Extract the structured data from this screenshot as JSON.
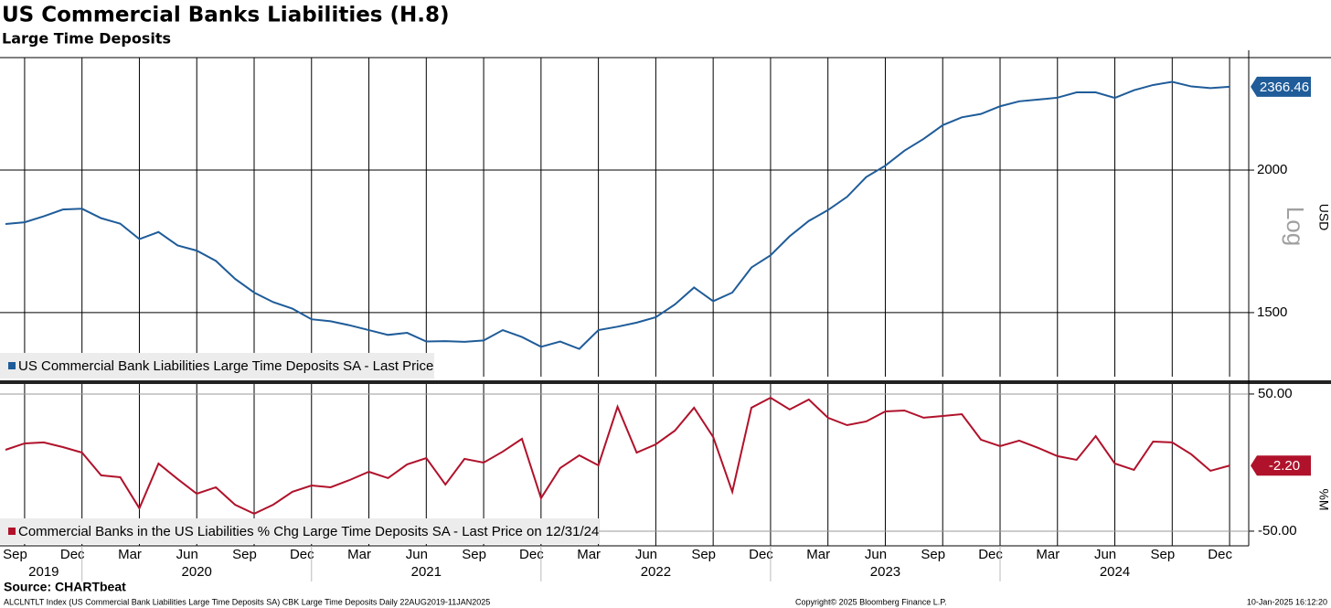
{
  "chart_data": [
    {
      "type": "line",
      "title": "US Commercial Banks Liabilities (H.8)",
      "subtitle": "Large Time Deposits",
      "log_scale": true,
      "y_label": "USD",
      "scale_label": "Log",
      "grid": true,
      "x": [
        "2019-09",
        "2019-10",
        "2019-11",
        "2019-12",
        "2020-01",
        "2020-02",
        "2020-03",
        "2020-04",
        "2020-05",
        "2020-06",
        "2020-07",
        "2020-08",
        "2020-09",
        "2020-10",
        "2020-11",
        "2020-12",
        "2021-01",
        "2021-02",
        "2021-03",
        "2021-04",
        "2021-05",
        "2021-06",
        "2021-07",
        "2021-08",
        "2021-09",
        "2021-10",
        "2021-11",
        "2021-12",
        "2022-01",
        "2022-02",
        "2022-03",
        "2022-04",
        "2022-05",
        "2022-06",
        "2022-07",
        "2022-08",
        "2022-09",
        "2022-10",
        "2022-11",
        "2022-12",
        "2023-01",
        "2023-02",
        "2023-03",
        "2023-04",
        "2023-05",
        "2023-06",
        "2023-07",
        "2023-08",
        "2023-09",
        "2023-10",
        "2023-11",
        "2023-12",
        "2024-01",
        "2024-02",
        "2024-03",
        "2024-04",
        "2024-05",
        "2024-06",
        "2024-07",
        "2024-08",
        "2024-09",
        "2024-10",
        "2024-11",
        "2024-12",
        "2025-01"
      ],
      "series": [
        {
          "name": "US Commercial Bank Liabilities Large Time Deposits SA - Last Price",
          "color": "#1f5c99",
          "values": [
            1794,
            1800,
            1822,
            1847,
            1850,
            1815,
            1795,
            1740,
            1765,
            1718,
            1700,
            1665,
            1606,
            1562,
            1532,
            1512,
            1480,
            1474,
            1462,
            1448,
            1434,
            1440,
            1415,
            1416,
            1414,
            1418,
            1448,
            1428,
            1400,
            1415,
            1394,
            1448,
            1458,
            1470,
            1486,
            1525,
            1578,
            1535,
            1562,
            1643,
            1684,
            1750,
            1805,
            1845,
            1895,
            1972,
            2018,
            2080,
            2130,
            2190,
            2225,
            2240,
            2275,
            2298,
            2306,
            2315,
            2340,
            2340,
            2314,
            2350,
            2375,
            2390,
            2368,
            2360,
            2366.46
          ]
        }
      ],
      "xlim": [
        "2019-09",
        "2025-02"
      ],
      "ylim": [
        1318,
        2510
      ],
      "yticks": [
        1500,
        2000
      ]
    },
    {
      "type": "line",
      "y_label": "%M",
      "grid": true,
      "x": [
        "2019-09",
        "2019-10",
        "2019-11",
        "2019-12",
        "2020-01",
        "2020-02",
        "2020-03",
        "2020-04",
        "2020-05",
        "2020-06",
        "2020-07",
        "2020-08",
        "2020-09",
        "2020-10",
        "2020-11",
        "2020-12",
        "2021-01",
        "2021-02",
        "2021-03",
        "2021-04",
        "2021-05",
        "2021-06",
        "2021-07",
        "2021-08",
        "2021-09",
        "2021-10",
        "2021-11",
        "2021-12",
        "2022-01",
        "2022-02",
        "2022-03",
        "2022-04",
        "2022-05",
        "2022-06",
        "2022-07",
        "2022-08",
        "2022-09",
        "2022-10",
        "2022-11",
        "2022-12",
        "2023-01",
        "2023-02",
        "2023-03",
        "2023-04",
        "2023-05",
        "2023-06",
        "2023-07",
        "2023-08",
        "2023-09",
        "2023-10",
        "2023-11",
        "2023-12",
        "2024-01",
        "2024-02",
        "2024-03",
        "2024-04",
        "2024-05",
        "2024-06",
        "2024-07",
        "2024-08",
        "2024-09",
        "2024-10",
        "2024-11",
        "2024-12",
        "2025-01"
      ],
      "series": [
        {
          "name": "Commercial Banks in the US Liabilities % Chg Large Time Deposits SA - Last Price on 12/31/24",
          "color": "#b0122b",
          "values": [
            9.3,
            14,
            14.7,
            11.3,
            7.3,
            -9.3,
            -10.7,
            -33.3,
            -0.7,
            -12,
            -22.7,
            -18,
            -30.7,
            -37.3,
            -30.7,
            -21.3,
            -16.7,
            -18,
            -12.7,
            -6.7,
            -11.3,
            -1.3,
            3.3,
            -16,
            2.7,
            0,
            8,
            17.3,
            -26,
            -4,
            5.3,
            -2,
            40.7,
            7.3,
            13.3,
            23.3,
            40,
            18.7,
            -21.3,
            40,
            47.3,
            38.7,
            46,
            32.7,
            27.3,
            30,
            37.3,
            38,
            32.7,
            34,
            35.3,
            16.7,
            12,
            16,
            10.7,
            4.7,
            2,
            19.3,
            -0.7,
            -5.3,
            15.3,
            14.7,
            6,
            -6,
            -2.2
          ],
          "value_labels": [
            null,
            null,
            null,
            null,
            null,
            null,
            null,
            null,
            null,
            null,
            null,
            null,
            null,
            null,
            null,
            null,
            null,
            null,
            null,
            null,
            null,
            null,
            null,
            null,
            null,
            null,
            null,
            null,
            null,
            null,
            null,
            null,
            null,
            null,
            null,
            null,
            null,
            null,
            null,
            null,
            null,
            null,
            null,
            null,
            null,
            null,
            null,
            null,
            null,
            null,
            null,
            null,
            null,
            null,
            null,
            null,
            null,
            null,
            null,
            null,
            null,
            null,
            null,
            null,
            "-2.20"
          ]
        }
      ],
      "xlim": [
        "2019-09",
        "2025-02"
      ],
      "ylim": [
        -60.7,
        57.3
      ],
      "yticks": [
        {
          "value": 50,
          "label": "50.00"
        },
        {
          "value": -50,
          "label": "-50.00"
        }
      ],
      "xticks": [
        {
          "value": "2019-09",
          "label": "Sep"
        },
        {
          "value": "2019-12",
          "label": "Dec"
        },
        {
          "value": "2020-03",
          "label": "Mar"
        },
        {
          "value": "2020-06",
          "label": "Jun"
        },
        {
          "value": "2020-09",
          "label": "Sep"
        },
        {
          "value": "2020-12",
          "label": "Dec"
        },
        {
          "value": "2021-03",
          "label": "Mar"
        },
        {
          "value": "2021-06",
          "label": "Jun"
        },
        {
          "value": "2021-09",
          "label": "Sep"
        },
        {
          "value": "2021-12",
          "label": "Dec"
        },
        {
          "value": "2022-03",
          "label": "Mar"
        },
        {
          "value": "2022-06",
          "label": "Jun"
        },
        {
          "value": "2022-09",
          "label": "Sep"
        },
        {
          "value": "2022-12",
          "label": "Dec"
        },
        {
          "value": "2023-03",
          "label": "Mar"
        },
        {
          "value": "2023-06",
          "label": "Jun"
        },
        {
          "value": "2023-09",
          "label": "Sep"
        },
        {
          "value": "2023-12",
          "label": "Dec"
        },
        {
          "value": "2024-03",
          "label": "Mar"
        },
        {
          "value": "2024-06",
          "label": "Jun"
        },
        {
          "value": "2024-09",
          "label": "Sep"
        },
        {
          "value": "2024-12",
          "label": "Dec"
        }
      ],
      "year_labels": [
        2019,
        2020,
        2021,
        2022,
        2023,
        2024
      ]
    }
  ],
  "footer": {
    "source": "Source: CHARTbeat",
    "description": "ALCLNTLT Index (US Commercial Bank Liabilities Large Time Deposits SA) CBK Large Time Deposits  Daily 22AUG2019-11JAN2025",
    "copyright": "Copyright© 2025 Bloomberg Finance L.P.",
    "timestamp": "10-Jan-2025 16:12:20"
  }
}
